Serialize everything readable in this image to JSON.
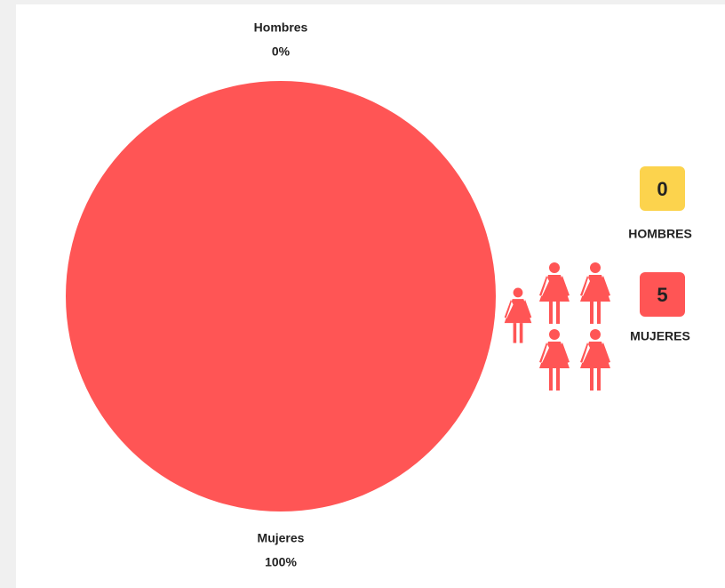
{
  "chart_data": {
    "type": "pie",
    "categories": [
      "Hombres",
      "Mujeres"
    ],
    "values": [
      0,
      100
    ],
    "value_labels": [
      "0%",
      "100%"
    ],
    "colors": [
      "#fcd34d",
      "#ff5555"
    ]
  },
  "legend": {
    "items": [
      {
        "count": 0,
        "label": "HOMBRES",
        "color": "#fcd34d"
      },
      {
        "count": 5,
        "label": "MUJERES",
        "color": "#ff5555"
      }
    ]
  }
}
